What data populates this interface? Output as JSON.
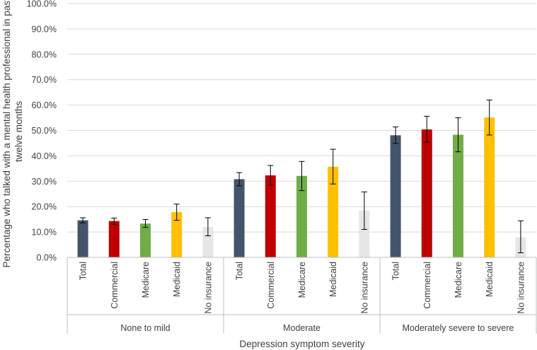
{
  "chart_data": {
    "type": "bar",
    "title": "",
    "xlabel": "Depression symptom severity",
    "ylabel_lines": [
      "Percentage who talked with a mental health professional in past",
      "twelve months"
    ],
    "ylim": [
      0,
      100
    ],
    "yticks": [
      0,
      10,
      20,
      30,
      40,
      50,
      60,
      70,
      80,
      90,
      100
    ],
    "ytick_labels": [
      "0.0%",
      "10.0%",
      "20.0%",
      "30.0%",
      "40.0%",
      "50.0%",
      "60.0%",
      "70.0%",
      "80.0%",
      "90.0%",
      "100.0%"
    ],
    "grid": true,
    "legend": "none",
    "groups": [
      {
        "label": "None to mild",
        "bars": [
          {
            "label": "Total",
            "value": 14.6,
            "err_low": 13.6,
            "err_high": 15.6,
            "color": "#44546a"
          },
          {
            "label": "Commercial",
            "value": 14.3,
            "err_low": 13.0,
            "err_high": 15.5,
            "color": "#c00000"
          },
          {
            "label": "Medicare",
            "value": 13.3,
            "err_low": 11.8,
            "err_high": 14.9,
            "color": "#70ad47"
          },
          {
            "label": "Medicaid",
            "value": 17.8,
            "err_low": 14.6,
            "err_high": 21.0,
            "color": "#ffc000"
          },
          {
            "label": "No insurance",
            "value": 12.0,
            "err_low": 8.5,
            "err_high": 15.6,
            "color": "#e7e6e6"
          }
        ]
      },
      {
        "label": "Moderate",
        "bars": [
          {
            "label": "Total",
            "value": 30.8,
            "err_low": 28.2,
            "err_high": 33.4,
            "color": "#44546a"
          },
          {
            "label": "Commercial",
            "value": 32.3,
            "err_low": 28.4,
            "err_high": 36.2,
            "color": "#c00000"
          },
          {
            "label": "Medicare",
            "value": 32.1,
            "err_low": 26.3,
            "err_high": 37.8,
            "color": "#70ad47"
          },
          {
            "label": "Medicaid",
            "value": 35.7,
            "err_low": 28.9,
            "err_high": 42.6,
            "color": "#ffc000"
          },
          {
            "label": "No insurance",
            "value": 18.4,
            "err_low": 11.0,
            "err_high": 25.8,
            "color": "#e7e6e6"
          }
        ]
      },
      {
        "label": "Moderately severe to severe",
        "bars": [
          {
            "label": "Total",
            "value": 48.1,
            "err_low": 44.9,
            "err_high": 51.4,
            "color": "#44546a"
          },
          {
            "label": "Commercial",
            "value": 50.4,
            "err_low": 45.4,
            "err_high": 55.6,
            "color": "#c00000"
          },
          {
            "label": "Medicare",
            "value": 48.3,
            "err_low": 41.6,
            "err_high": 55.0,
            "color": "#70ad47"
          },
          {
            "label": "Medicaid",
            "value": 55.1,
            "err_low": 48.2,
            "err_high": 62.0,
            "color": "#ffc000"
          },
          {
            "label": "No insurance",
            "value": 8.0,
            "err_low": 1.8,
            "err_high": 14.4,
            "color": "#e7e6e6"
          }
        ]
      }
    ]
  }
}
